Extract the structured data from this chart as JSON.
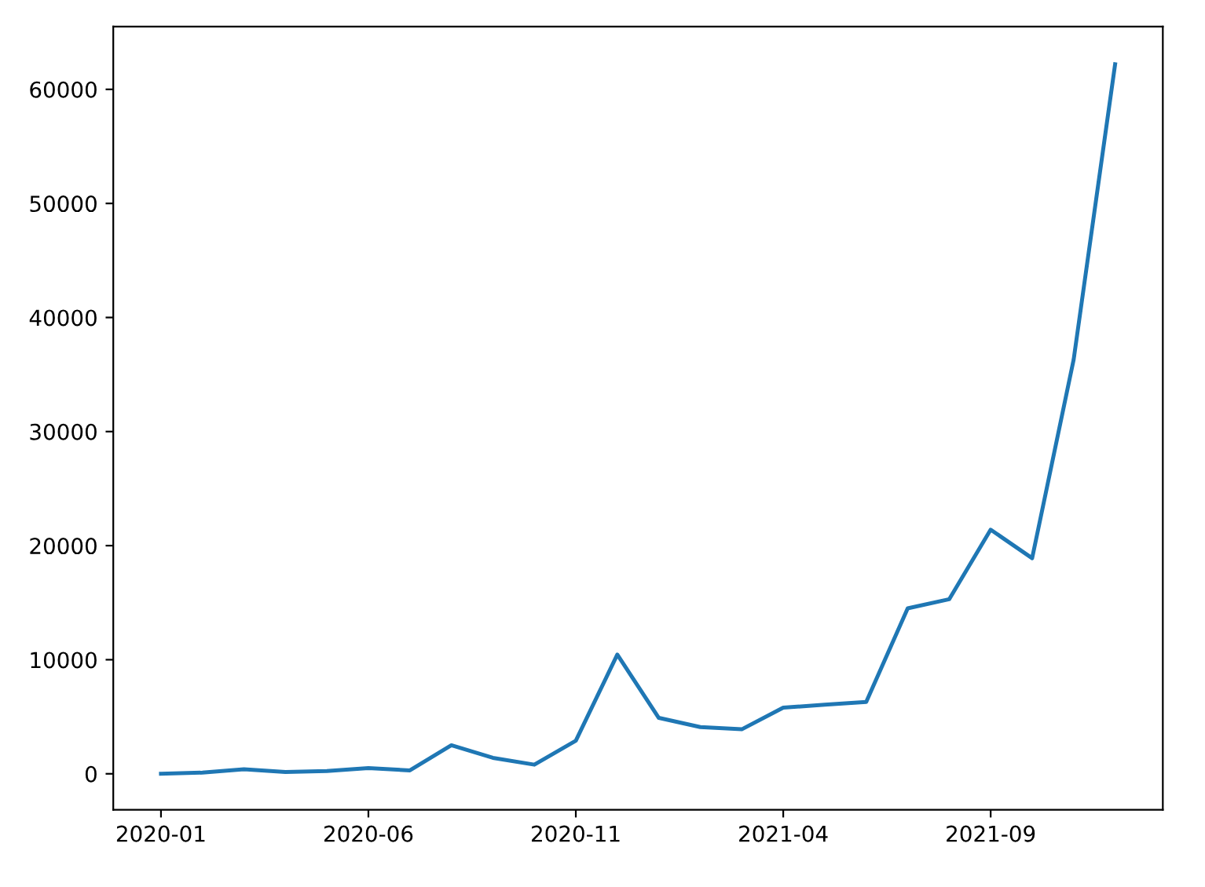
{
  "chart_data": {
    "type": "line",
    "categories": [
      "2020-01",
      null,
      null,
      null,
      null,
      "2020-06",
      null,
      null,
      null,
      null,
      "2020-11",
      null,
      null,
      null,
      null,
      "2021-04",
      null,
      null,
      null,
      null,
      "2021-09",
      null,
      null,
      null
    ],
    "series": [
      {
        "color": "#1f77b4",
        "values": [
          0,
          100,
          400,
          150,
          250,
          500,
          300,
          2500,
          1400,
          800,
          2900,
          10450,
          4900,
          4100,
          3900,
          5800,
          6050,
          6300,
          14500,
          15300,
          21400,
          18900,
          36300,
          62200
        ]
      }
    ],
    "ylim": [
      -3160,
      65500
    ],
    "yticks": [
      0,
      10000,
      20000,
      30000,
      40000,
      50000,
      60000
    ],
    "grid": false,
    "legend": false
  }
}
